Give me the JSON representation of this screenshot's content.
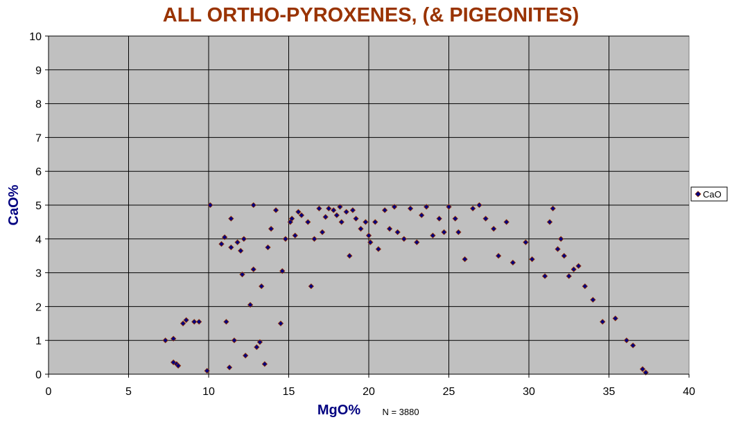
{
  "chart_data": {
    "type": "scatter",
    "title": "ALL ORTHO-PYROXENES, (& PIGEONITES)",
    "xlabel": "MgO%",
    "ylabel": "CaO%",
    "note": "N =  3880",
    "xlim": [
      0,
      40
    ],
    "ylim": [
      0,
      10
    ],
    "x_ticks": [
      "0",
      "5",
      "10",
      "15",
      "20",
      "25",
      "30",
      "35",
      "40"
    ],
    "y_ticks": [
      "0",
      "1",
      "2",
      "3",
      "4",
      "5",
      "6",
      "7",
      "8",
      "9",
      "10"
    ],
    "grid": true,
    "legend_position": "right",
    "series": [
      {
        "name": "CaO",
        "marker": "diamond",
        "marker_fill": "#000080",
        "marker_edge": "#993300",
        "points": [
          [
            7.3,
            1.0
          ],
          [
            7.8,
            1.05
          ],
          [
            7.8,
            0.35
          ],
          [
            8.0,
            0.3
          ],
          [
            8.1,
            0.25
          ],
          [
            8.4,
            1.5
          ],
          [
            8.6,
            1.6
          ],
          [
            9.1,
            1.55
          ],
          [
            9.4,
            1.55
          ],
          [
            9.9,
            0.1
          ],
          [
            10.1,
            5.0
          ],
          [
            10.8,
            3.85
          ],
          [
            11.0,
            4.05
          ],
          [
            11.1,
            1.55
          ],
          [
            11.3,
            0.2
          ],
          [
            11.4,
            3.75
          ],
          [
            11.4,
            4.6
          ],
          [
            11.6,
            1.0
          ],
          [
            11.8,
            3.9
          ],
          [
            12.0,
            3.65
          ],
          [
            12.1,
            2.95
          ],
          [
            12.2,
            4.0
          ],
          [
            12.3,
            0.55
          ],
          [
            12.6,
            2.05
          ],
          [
            12.8,
            5.0
          ],
          [
            12.8,
            3.1
          ],
          [
            13.0,
            0.8
          ],
          [
            13.2,
            0.95
          ],
          [
            13.3,
            2.6
          ],
          [
            13.5,
            0.3
          ],
          [
            13.7,
            3.75
          ],
          [
            13.9,
            4.3
          ],
          [
            14.2,
            4.85
          ],
          [
            14.5,
            1.5
          ],
          [
            14.6,
            3.05
          ],
          [
            14.8,
            4.0
          ],
          [
            15.1,
            4.5
          ],
          [
            15.2,
            4.6
          ],
          [
            15.4,
            4.1
          ],
          [
            15.6,
            4.8
          ],
          [
            15.8,
            4.7
          ],
          [
            16.2,
            4.5
          ],
          [
            16.4,
            2.6
          ],
          [
            16.6,
            4.0
          ],
          [
            16.9,
            4.9
          ],
          [
            17.1,
            4.2
          ],
          [
            17.3,
            4.65
          ],
          [
            17.5,
            4.9
          ],
          [
            17.8,
            4.85
          ],
          [
            18.0,
            4.7
          ],
          [
            18.2,
            4.95
          ],
          [
            18.3,
            4.5
          ],
          [
            18.6,
            4.8
          ],
          [
            18.8,
            3.5
          ],
          [
            19.0,
            4.85
          ],
          [
            19.2,
            4.6
          ],
          [
            19.5,
            4.3
          ],
          [
            19.8,
            4.5
          ],
          [
            20.0,
            4.1
          ],
          [
            20.1,
            3.9
          ],
          [
            20.4,
            4.5
          ],
          [
            20.6,
            3.7
          ],
          [
            21.0,
            4.85
          ],
          [
            21.3,
            4.3
          ],
          [
            21.6,
            4.95
          ],
          [
            21.8,
            4.2
          ],
          [
            22.2,
            4.0
          ],
          [
            22.6,
            4.9
          ],
          [
            23.0,
            3.9
          ],
          [
            23.3,
            4.7
          ],
          [
            23.6,
            4.95
          ],
          [
            24.0,
            4.1
          ],
          [
            24.4,
            4.6
          ],
          [
            24.7,
            4.2
          ],
          [
            25.0,
            4.95
          ],
          [
            25.4,
            4.6
          ],
          [
            25.6,
            4.2
          ],
          [
            26.0,
            3.4
          ],
          [
            26.5,
            4.9
          ],
          [
            26.9,
            5.0
          ],
          [
            27.3,
            4.6
          ],
          [
            27.8,
            4.3
          ],
          [
            28.1,
            3.5
          ],
          [
            28.6,
            4.5
          ],
          [
            29.0,
            3.3
          ],
          [
            29.8,
            3.9
          ],
          [
            30.2,
            3.4
          ],
          [
            31.0,
            2.9
          ],
          [
            31.3,
            4.5
          ],
          [
            31.5,
            4.9
          ],
          [
            31.8,
            3.7
          ],
          [
            32.0,
            4.0
          ],
          [
            32.2,
            3.5
          ],
          [
            32.5,
            2.9
          ],
          [
            32.8,
            3.1
          ],
          [
            33.1,
            3.2
          ],
          [
            33.5,
            2.6
          ],
          [
            34.0,
            2.2
          ],
          [
            34.6,
            1.55
          ],
          [
            35.4,
            1.65
          ],
          [
            36.1,
            1.0
          ],
          [
            36.5,
            0.85
          ],
          [
            37.1,
            0.15
          ],
          [
            37.3,
            0.05
          ]
        ]
      }
    ]
  },
  "legend": {
    "label": "CaO"
  }
}
